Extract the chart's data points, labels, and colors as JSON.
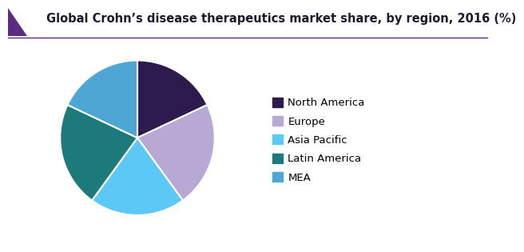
{
  "title": "Global Crohn’s disease therapeutics market share, by region, 2016 (%)",
  "labels": [
    "North America",
    "Europe",
    "Asia Pacific",
    "Latin America",
    "MEA"
  ],
  "values": [
    18,
    22,
    20,
    22,
    18
  ],
  "colors": [
    "#2d1b4e",
    "#b8a9d4",
    "#5bc8f5",
    "#1d7a7a",
    "#4da6d4"
  ],
  "title_fontsize": 10.5,
  "legend_fontsize": 9.5,
  "start_angle": 90,
  "background_color": "#ffffff",
  "title_accent_color": "#5b2d82",
  "title_line_color": "#5b2d82",
  "wedge_edge_color": "#ffffff",
  "title_color": "#1a1a2e"
}
